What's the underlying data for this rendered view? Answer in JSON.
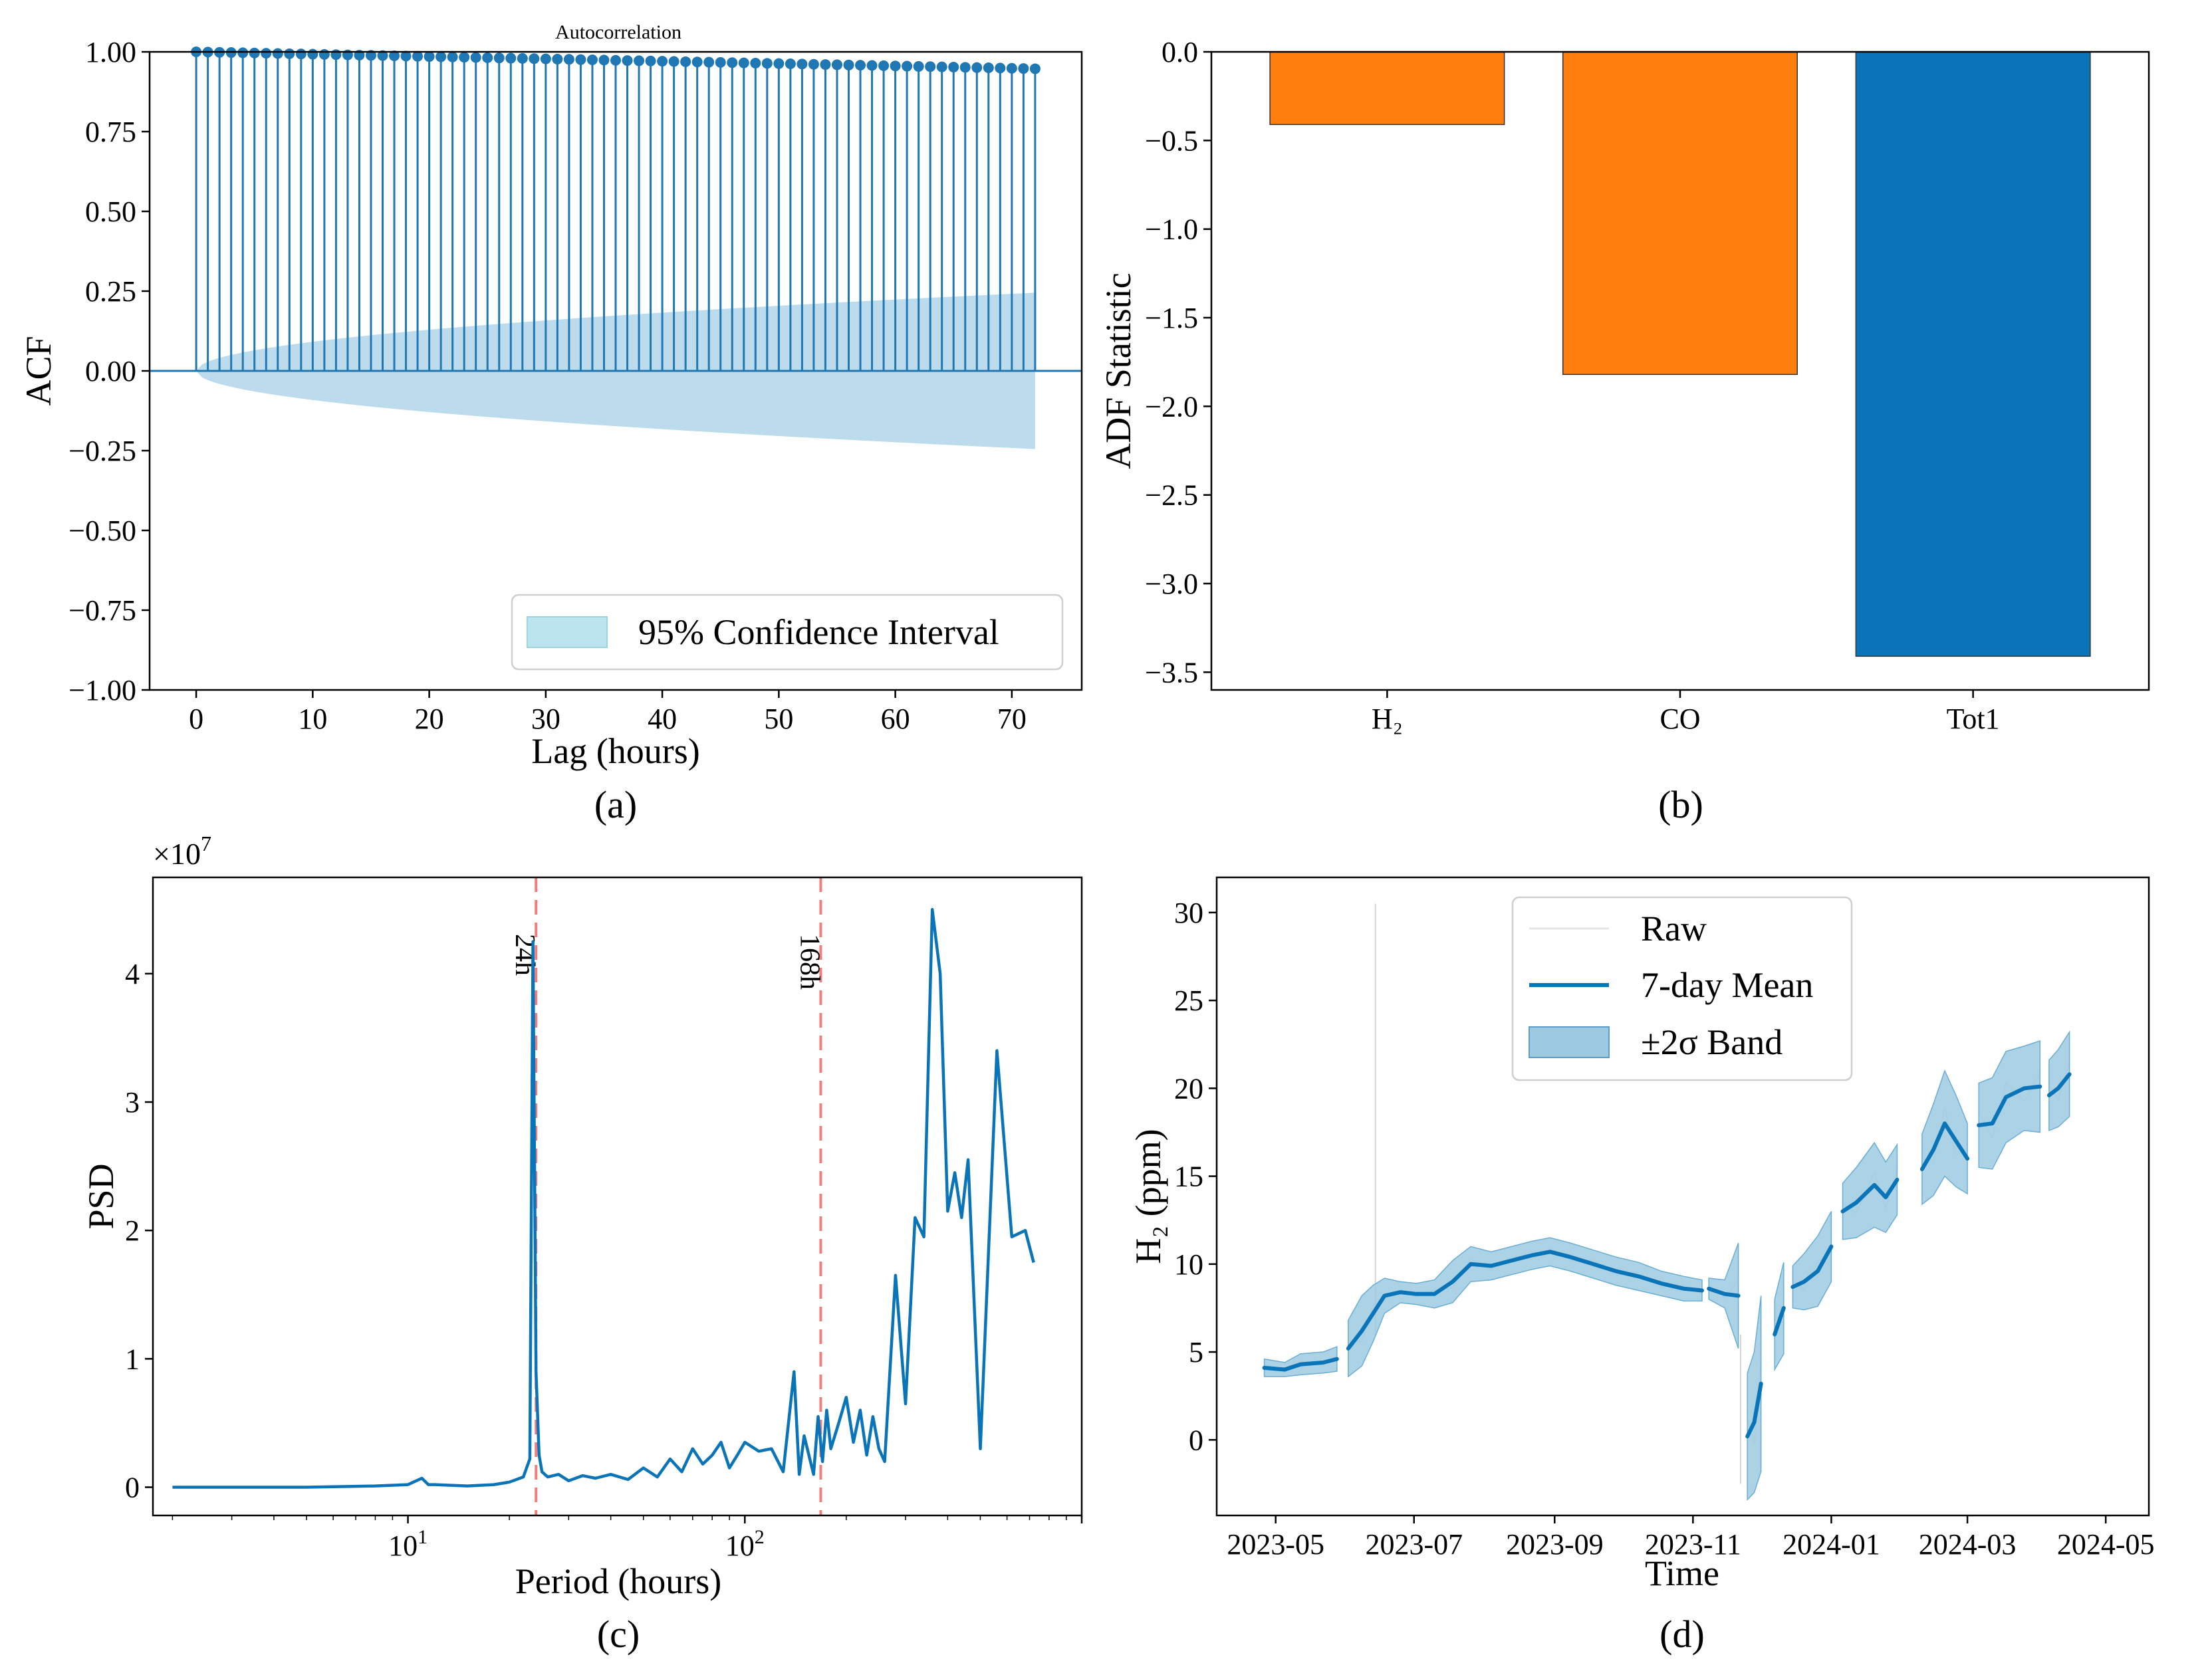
{
  "colors": {
    "blue": "#1f77b4",
    "deep_blue": "#0a74b8",
    "orange": "#ff7f0e",
    "ci_fill": "#bcdcee",
    "band_fill": "#9ecae1",
    "raw_line": "#d9d9d9",
    "red_dash": "#ef7f7f"
  },
  "chart_data": [
    {
      "id": "a",
      "type": "stem",
      "panel_label": "(a)",
      "title": "Autocorrelation",
      "xlabel": "Lag (hours)",
      "ylabel": "ACF",
      "xlim": [
        -4,
        76
      ],
      "ylim": [
        -1.0,
        1.0
      ],
      "xticks": [
        0,
        10,
        20,
        30,
        40,
        50,
        60,
        70
      ],
      "xtick_labels": [
        "0",
        "10",
        "20",
        "30",
        "40",
        "50",
        "60",
        "70"
      ],
      "yticks": [
        1.0,
        0.75,
        0.5,
        0.25,
        0.0,
        -0.25,
        -0.5,
        -0.75,
        -1.0
      ],
      "ytick_labels": [
        "1.00",
        "0.75",
        "0.50",
        "0.25",
        "0.00",
        "−0.25",
        "−0.50",
        "−0.75",
        "−1.00"
      ],
      "acf_start": 1.0,
      "acf_end": 0.947,
      "max_lag": 72,
      "ci_max": 0.245,
      "legend": [
        "95% Confidence Interval"
      ]
    },
    {
      "id": "b",
      "type": "bar",
      "panel_label": "(b)",
      "xlabel": "",
      "ylabel": "ADF Statistic",
      "categories": [
        "H₂",
        "CO",
        "Tot1"
      ],
      "values": [
        -0.41,
        -1.82,
        -3.41
      ],
      "bar_colors": [
        "orange",
        "orange",
        "deep_blue"
      ],
      "ylim": [
        -3.6,
        0.0
      ],
      "yticks": [
        0.0,
        -0.5,
        -1.0,
        -1.5,
        -2.0,
        -2.5,
        -3.0,
        -3.5
      ],
      "ytick_labels": [
        "0.0",
        "−0.5",
        "−1.0",
        "−1.5",
        "−2.0",
        "−2.5",
        "−3.0",
        "−3.5"
      ]
    },
    {
      "id": "c",
      "type": "line",
      "panel_label": "(c)",
      "xlabel": "Period (hours)",
      "ylabel": "PSD",
      "xscale": "log",
      "xlim": [
        1.75,
        1000
      ],
      "ylim": [
        -0.22,
        4.75
      ],
      "y_multiplier": "×10",
      "y_exponent": "7",
      "yticks": [
        0,
        1,
        2,
        3,
        4
      ],
      "ytick_labels": [
        "0",
        "1",
        "2",
        "3",
        "4"
      ],
      "xticks": [
        10,
        100
      ],
      "xtick_base": "10",
      "xtick_exponents": [
        "1",
        "2"
      ],
      "vlines": [
        {
          "x": 24,
          "label": "24h"
        },
        {
          "x": 168,
          "label": "168h"
        }
      ],
      "series": {
        "x": [
          2,
          5,
          8,
          10,
          11,
          11.5,
          12,
          15,
          18,
          20,
          22,
          23,
          23.5,
          24,
          24.5,
          25,
          26,
          28,
          30,
          33,
          36,
          40,
          45,
          50,
          55,
          60,
          65,
          70,
          75,
          80,
          85,
          90,
          95,
          100,
          110,
          120,
          130,
          140,
          145,
          150,
          160,
          165,
          170,
          175,
          180,
          190,
          200,
          210,
          220,
          230,
          240,
          250,
          260,
          280,
          300,
          320,
          340,
          360,
          380,
          400,
          420,
          440,
          460,
          500,
          560,
          620,
          680,
          720
        ],
        "y": [
          0,
          0,
          0.01,
          0.02,
          0.07,
          0.02,
          0.02,
          0.01,
          0.02,
          0.04,
          0.08,
          0.22,
          4.25,
          0.9,
          0.25,
          0.12,
          0.08,
          0.1,
          0.05,
          0.09,
          0.07,
          0.1,
          0.06,
          0.15,
          0.08,
          0.22,
          0.12,
          0.3,
          0.18,
          0.25,
          0.35,
          0.15,
          0.25,
          0.35,
          0.28,
          0.3,
          0.12,
          0.9,
          0.1,
          0.4,
          0.1,
          0.55,
          0.2,
          0.6,
          0.3,
          0.5,
          0.7,
          0.35,
          0.6,
          0.25,
          0.55,
          0.3,
          0.2,
          1.65,
          0.65,
          2.1,
          1.95,
          4.5,
          4.0,
          2.15,
          2.45,
          2.1,
          2.55,
          0.3,
          3.4,
          1.95,
          2.0,
          1.75
        ]
      }
    },
    {
      "id": "d",
      "type": "line",
      "panel_label": "(d)",
      "xlabel": "Time",
      "ylabel": "H₂ (ppm)",
      "xlim": [
        "2023-04-05",
        "2024-05-20"
      ],
      "ylim": [
        -4.3,
        32.0
      ],
      "yticks": [
        0,
        5,
        10,
        15,
        20,
        25,
        30
      ],
      "ytick_labels": [
        "0",
        "5",
        "10",
        "15",
        "20",
        "25",
        "30"
      ],
      "xticks": [
        "2023-05-01",
        "2023-07-01",
        "2023-09-01",
        "2023-11-01",
        "2024-01-01",
        "2024-03-01",
        "2024-05-01"
      ],
      "xtick_labels": [
        "2023-05",
        "2023-07",
        "2023-09",
        "2023-11",
        "2024-01",
        "2024-03",
        "2024-05"
      ],
      "legend": [
        "Raw",
        "7-day Mean",
        "±2σ Band"
      ],
      "mean_segments": [
        {
          "t": [
            "2023-04-26",
            "2023-05-05",
            "2023-05-12",
            "2023-05-22",
            "2023-05-28"
          ],
          "y": [
            4.1,
            4.0,
            4.3,
            4.4,
            4.6
          ],
          "sd": [
            0.25,
            0.2,
            0.3,
            0.3,
            0.35
          ]
        },
        {
          "t": [
            "2023-06-02",
            "2023-06-08",
            "2023-06-13",
            "2023-06-18",
            "2023-06-25",
            "2023-07-02",
            "2023-07-10",
            "2023-07-18",
            "2023-07-26",
            "2023-08-04",
            "2023-08-13",
            "2023-08-22",
            "2023-08-30",
            "2023-09-08",
            "2023-09-18",
            "2023-09-28",
            "2023-10-08",
            "2023-10-18",
            "2023-10-28",
            "2023-11-05"
          ],
          "y": [
            5.2,
            6.2,
            7.2,
            8.2,
            8.4,
            8.3,
            8.3,
            9.0,
            10.0,
            9.9,
            10.2,
            10.5,
            10.7,
            10.4,
            10.0,
            9.6,
            9.3,
            8.9,
            8.6,
            8.5
          ],
          "sd": [
            0.8,
            1.0,
            0.8,
            0.5,
            0.3,
            0.3,
            0.4,
            0.6,
            0.5,
            0.4,
            0.4,
            0.4,
            0.4,
            0.4,
            0.4,
            0.4,
            0.4,
            0.35,
            0.35,
            0.3
          ]
        },
        {
          "t": [
            "2023-11-08",
            "2023-11-15",
            "2023-11-21"
          ],
          "y": [
            8.6,
            8.3,
            8.2
          ],
          "sd": [
            0.3,
            0.4,
            1.5
          ]
        },
        {
          "t": [
            "2023-11-25",
            "2023-11-28",
            "2023-12-01"
          ],
          "y": [
            0.2,
            1.0,
            3.2
          ],
          "sd": [
            1.8,
            2.0,
            2.5
          ]
        },
        {
          "t": [
            "2023-12-07",
            "2023-12-11"
          ],
          "y": [
            6.0,
            7.5
          ],
          "sd": [
            1.0,
            1.3
          ]
        },
        {
          "t": [
            "2023-12-15",
            "2023-12-20",
            "2023-12-26",
            "2024-01-01"
          ],
          "y": [
            8.7,
            9.0,
            9.6,
            11.0
          ],
          "sd": [
            0.6,
            0.8,
            1.0,
            1.0
          ]
        },
        {
          "t": [
            "2024-01-06",
            "2024-01-12",
            "2024-01-20",
            "2024-01-25",
            "2024-01-30"
          ],
          "y": [
            13.0,
            13.5,
            14.5,
            13.8,
            14.8
          ],
          "sd": [
            0.8,
            1.0,
            1.2,
            1.0,
            1.0
          ]
        },
        {
          "t": [
            "2024-02-10",
            "2024-02-15",
            "2024-02-20",
            "2024-02-25",
            "2024-03-01"
          ],
          "y": [
            15.4,
            16.5,
            18.0,
            17.0,
            16.0
          ],
          "sd": [
            1.0,
            1.3,
            1.5,
            1.3,
            1.0
          ]
        },
        {
          "t": [
            "2024-03-06",
            "2024-03-12",
            "2024-03-18",
            "2024-03-26",
            "2024-04-02"
          ],
          "y": [
            17.9,
            18.0,
            19.5,
            20.0,
            20.1
          ],
          "sd": [
            1.2,
            1.3,
            1.3,
            1.2,
            1.3
          ]
        },
        {
          "t": [
            "2024-04-06",
            "2024-04-10",
            "2024-04-15"
          ],
          "y": [
            19.6,
            20.0,
            20.8
          ],
          "sd": [
            1.0,
            1.1,
            1.2
          ]
        }
      ],
      "raw_spikes": [
        {
          "t": "2023-06-14",
          "y": 30.5
        },
        {
          "t": "2023-11-22",
          "y": -2.5
        }
      ]
    }
  ]
}
